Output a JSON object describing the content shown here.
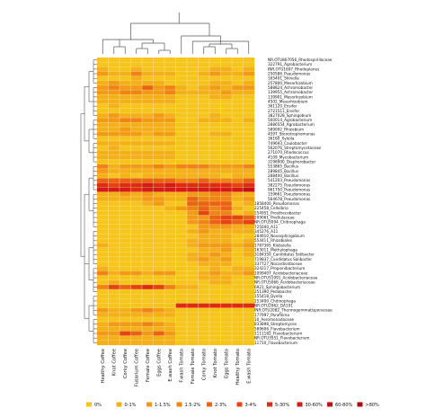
{
  "chart_data": {
    "type": "heatmap",
    "columns": [
      "Healthy Coffee",
      "Knot Coffee",
      "Corky Coffee",
      "Fusarium Coffee",
      "Female Coffee",
      "Eggs Coffee",
      "E.wash Coffee",
      "F.wash Tomato",
      "Female Tomato",
      "Corky Tomato",
      "Knot Tomato",
      "Eggs Tomato",
      "Healthy Tomato",
      "E.wash Tomato"
    ],
    "rows": [
      "NR.OTU807056_Rhodospirillaceae",
      "322791_Agrobacterium",
      "INR.OTU1697_Rhodoplanes",
      "250586_Pseudomonas",
      "165401_Shinella",
      "257800_Mesorhizobium",
      "588824_Achromobacter",
      "139955_Achromobacter",
      "139901_Mesorhizobium",
      "4502_Mesorhizobium",
      "361120_Ensifer",
      "2721511_Ensifer",
      "3827028_Sphingobium",
      "500014_Agrobacterium",
      "2886554_Agrobacterium",
      "589092_Rhizobium",
      "4597_Stenotrophomonas",
      "36160_Xylella",
      "749693_Caulobacter",
      "562076_Streptomycetaceae",
      "271070_Rhodococcus",
      "4109_Mycobacterium",
      "3196900_Diaphorobacter",
      "553865_Bacillus",
      "289845_Bacillus",
      "288400_Bacillus",
      "541203_Pseudomonas",
      "382275_Pseudomonas",
      "961750_Pseudomonas",
      "159661_Pseudomonas",
      "564678_Pseudomonas",
      "1858400_Pseudomonas",
      "225458_Cellvibrio",
      "254951_Prosthecobacter",
      "209061_Pirellulaceae",
      "NR.OTU5094_Chitinophaga",
      "725040_A11",
      "345276_A11",
      "284910_Novosphingobium",
      "554411_Rhizobiales",
      "1787365_Klebsiella",
      "163011_Methylophaga",
      "3184350_Candidatus Solibacter",
      "719837_Candidatus Solibacter",
      "337727_Nocardioidaceae",
      "324217_Propionibacterium",
      "1099407_Acidobacteriaceae",
      "NR.OTU51091_Acidobacteriaceae",
      "NR.OTU5066_Acidobacteriaceae",
      "6921_Sphingobacterium",
      "251390_Pedobacter",
      "155418_Dyella",
      "253400_Chitinophaga",
      "NR.OTU2962_DA101",
      "INR.OTU2082_Thermogemmatisporaceae",
      "177997_Parafilima",
      "10_Aeromonadaceae",
      "833898_Streptomyces",
      "589606_Flavobacterium",
      "1111182_Flavobacterium",
      "NR.OTU3551_Flavobacterium",
      "11710_Flavobacterium"
    ],
    "row_label_lines": [
      [
        "NR.OTU807056_Rhodospirillaceae",
        "322791_Agrobacterium",
        "INR.OTU1697_Rhodoplanes",
        "250586_Pseudomonas",
        "165401_Shinella",
        "257800_Mesorhizobium",
        "588824_Achromobacter",
        "139955_Achromobacter",
        "139901_Mesorhizobium",
        "4502_Mesorhizobium",
        "361120_Ensifer",
        "2721511_Ensifer",
        "3827028_Sphingobium",
        "500014_Agrobacterium",
        "2886554_Agrobacterium",
        "589092_Rhizobium",
        "4597_Stenotrophomonas",
        "36160_Xylella",
        "749693_Caulobacter",
        "562076_Streptomycetaceae",
        "271070_Rhodococcus",
        "4109_Mycobacterium",
        "3196900_Diaphorobacter",
        "553865_Bacillus",
        "289845_Bacillus",
        "288400_Bacillus",
        "541203_Pseudomonas",
        "382275_Pseudomonas",
        "961750_Pseudomonas",
        "159661_Pseudomonas",
        "564678_Pseudomonas"
      ],
      [
        "1858400_Pseudomonas",
        "225458_Cellvibrio",
        "254951_Prosthecobacter",
        "209061_Pirellulaceae",
        "NR.OTU5094_Chitinophaga",
        "725040_A11",
        "345276_A11",
        "284910_Novosphingobium",
        "554411_Rhizobiales",
        "1787365_Klebsiella",
        "163011_Methylophaga",
        "3184350_Candidatus Solibacter",
        "719837_Candidatus Solibacter",
        "337727_Nocardioidaceae",
        "324217_Propionibacterium",
        "1099407_Acidobacteriaceae",
        "NR.OTU51091_Acidobacteriaceae",
        "NR.OTU5066_Acidobacteriaceae",
        "6921_Sphingobacterium",
        "251390_Pedobacter",
        "155418_Dyella",
        "253400_Chitinophaga",
        "NR.OTU2962_DA101",
        "INR.OTU2082_Thermogemmatisporaceae",
        "177997_Parafilima",
        "10_Aeromonadaceae",
        "833898_Streptomyces",
        "589606_Flavobacterium",
        "1111182_Flavobacterium",
        "NR.OTU3551_Flavobacterium",
        "11710_Flavobacterium"
      ]
    ],
    "values": [
      [
        0,
        0,
        0,
        0,
        0,
        0,
        0,
        0,
        0,
        0,
        0,
        0,
        0,
        0
      ],
      [
        0,
        0,
        0,
        0,
        0,
        0,
        0,
        0,
        0,
        0,
        0,
        0,
        0,
        0
      ],
      [
        1,
        0,
        0,
        1,
        0,
        0,
        0,
        0,
        0,
        0,
        1,
        1,
        0,
        1
      ],
      [
        2,
        1,
        1,
        3,
        1,
        1,
        1,
        0,
        0,
        1,
        2,
        1,
        1,
        2
      ],
      [
        0,
        0,
        0,
        1,
        0,
        0,
        0,
        0,
        0,
        0,
        0,
        0,
        0,
        0
      ],
      [
        1,
        2,
        1,
        1,
        1,
        1,
        0,
        0,
        0,
        0,
        1,
        1,
        0,
        1
      ],
      [
        2,
        3,
        2,
        2,
        4,
        2,
        3,
        1,
        0,
        1,
        2,
        1,
        2,
        2
      ],
      [
        2,
        2,
        3,
        3,
        2,
        2,
        3,
        1,
        1,
        1,
        1,
        2,
        1,
        1
      ],
      [
        1,
        1,
        1,
        1,
        1,
        1,
        1,
        0,
        0,
        0,
        1,
        1,
        0,
        0
      ],
      [
        1,
        1,
        1,
        1,
        1,
        1,
        1,
        0,
        0,
        0,
        0,
        0,
        0,
        0
      ],
      [
        0,
        1,
        0,
        0,
        0,
        0,
        0,
        0,
        0,
        0,
        0,
        0,
        0,
        0
      ],
      [
        0,
        0,
        0,
        0,
        0,
        0,
        0,
        0,
        0,
        0,
        0,
        0,
        0,
        0
      ],
      [
        1,
        2,
        1,
        1,
        1,
        2,
        1,
        0,
        0,
        0,
        1,
        0,
        0,
        0
      ],
      [
        2,
        2,
        3,
        3,
        2,
        2,
        2,
        0,
        0,
        1,
        1,
        1,
        0,
        1
      ],
      [
        1,
        1,
        1,
        1,
        1,
        1,
        1,
        0,
        0,
        0,
        0,
        0,
        0,
        0
      ],
      [
        1,
        1,
        2,
        1,
        1,
        1,
        1,
        0,
        0,
        0,
        0,
        0,
        0,
        0
      ],
      [
        2,
        2,
        2,
        2,
        1,
        2,
        2,
        0,
        0,
        0,
        1,
        1,
        0,
        0
      ],
      [
        0,
        0,
        0,
        0,
        0,
        0,
        0,
        0,
        0,
        0,
        0,
        0,
        0,
        0
      ],
      [
        1,
        1,
        1,
        1,
        1,
        1,
        1,
        0,
        0,
        0,
        0,
        0,
        0,
        0
      ],
      [
        0,
        1,
        0,
        0,
        0,
        0,
        0,
        0,
        0,
        0,
        0,
        0,
        0,
        0
      ],
      [
        1,
        1,
        1,
        1,
        1,
        1,
        1,
        0,
        0,
        0,
        0,
        0,
        0,
        0
      ],
      [
        1,
        1,
        1,
        1,
        1,
        1,
        1,
        0,
        0,
        0,
        0,
        0,
        0,
        0
      ],
      [
        0,
        0,
        0,
        0,
        0,
        0,
        0,
        0,
        0,
        0,
        0,
        0,
        0,
        0
      ],
      [
        3,
        1,
        2,
        2,
        2,
        3,
        2,
        3,
        3,
        3,
        2,
        2,
        2,
        3
      ],
      [
        2,
        1,
        1,
        1,
        1,
        1,
        1,
        1,
        1,
        1,
        1,
        1,
        1,
        1
      ],
      [
        1,
        0,
        1,
        0,
        1,
        1,
        1,
        1,
        1,
        1,
        1,
        0,
        1,
        1
      ],
      [
        4,
        4,
        4,
        4,
        4,
        4,
        4,
        3,
        3,
        4,
        3,
        3,
        3,
        4
      ],
      [
        6,
        5,
        6,
        6,
        7,
        6,
        7,
        6,
        6,
        6,
        6,
        6,
        5,
        6
      ],
      [
        7,
        7,
        7,
        6,
        7,
        7,
        7,
        7,
        7,
        7,
        7,
        7,
        7,
        8
      ],
      [
        1,
        1,
        2,
        1,
        2,
        1,
        1,
        1,
        2,
        2,
        3,
        3,
        1,
        1
      ],
      [
        1,
        1,
        1,
        1,
        2,
        2,
        1,
        1,
        4,
        3,
        3,
        3,
        1,
        2
      ],
      [
        0,
        0,
        0,
        0,
        1,
        2,
        0,
        0,
        4,
        4,
        4,
        4,
        0,
        1
      ],
      [
        0,
        0,
        0,
        0,
        0,
        0,
        1,
        2,
        3,
        4,
        3,
        4,
        1,
        0
      ],
      [
        0,
        0,
        0,
        0,
        0,
        0,
        0,
        0,
        2,
        5,
        3,
        3,
        0,
        1
      ],
      [
        0,
        0,
        0,
        0,
        0,
        0,
        0,
        0,
        2,
        2,
        4,
        5,
        5,
        4
      ],
      [
        0,
        0,
        0,
        0,
        0,
        0,
        0,
        0,
        2,
        3,
        4,
        5,
        4,
        5
      ],
      [
        0,
        0,
        0,
        0,
        0,
        0,
        0,
        0,
        0,
        2,
        2,
        2,
        1,
        1
      ],
      [
        0,
        0,
        0,
        0,
        0,
        0,
        0,
        0,
        1,
        2,
        1,
        1,
        1,
        1
      ],
      [
        0,
        0,
        0,
        0,
        0,
        0,
        0,
        0,
        0,
        1,
        1,
        1,
        0,
        0
      ],
      [
        0,
        0,
        0,
        0,
        0,
        0,
        0,
        0,
        1,
        1,
        1,
        1,
        0,
        1
      ],
      [
        1,
        0,
        0,
        0,
        0,
        0,
        0,
        0,
        1,
        2,
        2,
        2,
        1,
        2
      ],
      [
        0,
        0,
        0,
        0,
        0,
        0,
        0,
        0,
        0,
        1,
        1,
        2,
        0,
        1
      ],
      [
        0,
        0,
        0,
        0,
        0,
        0,
        0,
        0,
        1,
        1,
        2,
        1,
        0,
        1
      ],
      [
        0,
        0,
        0,
        0,
        0,
        0,
        0,
        0,
        1,
        2,
        1,
        2,
        0,
        0
      ],
      [
        0,
        0,
        0,
        0,
        0,
        0,
        0,
        0,
        0,
        1,
        1,
        1,
        0,
        0
      ],
      [
        1,
        0,
        0,
        0,
        0,
        0,
        0,
        0,
        0,
        0,
        1,
        0,
        1,
        1
      ],
      [
        3,
        1,
        2,
        2,
        1,
        2,
        2,
        0,
        0,
        1,
        2,
        1,
        1,
        2
      ],
      [
        0,
        0,
        0,
        0,
        0,
        0,
        0,
        0,
        0,
        1,
        1,
        1,
        0,
        0
      ],
      [
        0,
        1,
        0,
        0,
        0,
        0,
        0,
        0,
        0,
        0,
        1,
        1,
        0,
        0
      ],
      [
        3,
        5,
        4,
        5,
        6,
        5,
        3,
        1,
        1,
        0,
        0,
        0,
        0,
        0
      ],
      [
        0,
        0,
        0,
        0,
        0,
        0,
        0,
        0,
        0,
        0,
        0,
        0,
        0,
        0
      ],
      [
        0,
        0,
        0,
        0,
        0,
        0,
        0,
        0,
        0,
        0,
        0,
        0,
        0,
        0
      ],
      [
        0,
        0,
        0,
        0,
        0,
        0,
        0,
        0,
        0,
        0,
        0,
        0,
        0,
        0
      ],
      [
        0,
        0,
        0,
        0,
        0,
        0,
        0,
        6,
        6,
        6,
        6,
        6,
        6,
        6
      ],
      [
        2,
        1,
        1,
        2,
        3,
        2,
        1,
        0,
        0,
        0,
        0,
        0,
        0,
        0
      ],
      [
        1,
        1,
        1,
        1,
        1,
        1,
        1,
        0,
        0,
        0,
        0,
        0,
        0,
        0
      ],
      [
        0,
        0,
        0,
        0,
        0,
        0,
        0,
        0,
        0,
        0,
        0,
        0,
        0,
        0
      ],
      [
        1,
        2,
        2,
        2,
        3,
        2,
        1,
        0,
        0,
        0,
        0,
        0,
        0,
        0
      ],
      [
        1,
        1,
        1,
        1,
        1,
        1,
        1,
        0,
        0,
        0,
        0,
        0,
        0,
        0
      ],
      [
        2,
        2,
        5,
        4,
        2,
        4,
        2,
        0,
        0,
        0,
        0,
        0,
        0,
        0
      ],
      [
        1,
        1,
        1,
        1,
        1,
        1,
        1,
        0,
        0,
        0,
        0,
        0,
        0,
        0
      ],
      [
        1,
        1,
        1,
        1,
        1,
        1,
        1,
        0,
        0,
        0,
        0,
        0,
        0,
        0
      ]
    ],
    "legend": [
      {
        "label": "0%",
        "color": "#f6c51c"
      },
      {
        "label": "0-1%",
        "color": "#f4b018"
      },
      {
        "label": "1-1.5%",
        "color": "#f29a16"
      },
      {
        "label": "1.5-2%",
        "color": "#ef8414"
      },
      {
        "label": "2-3%",
        "color": "#ea6312"
      },
      {
        "label": "3-4%",
        "color": "#e54412"
      },
      {
        "label": "5-30%",
        "color": "#de2b14"
      },
      {
        "label": "30-60%",
        "color": "#d31a14"
      },
      {
        "label": "60-80%",
        "color": "#c40e12"
      },
      {
        "label": ">80%",
        "color": "#b0070f"
      }
    ],
    "dendrogram_columns": true,
    "dendrogram_rows": true
  }
}
